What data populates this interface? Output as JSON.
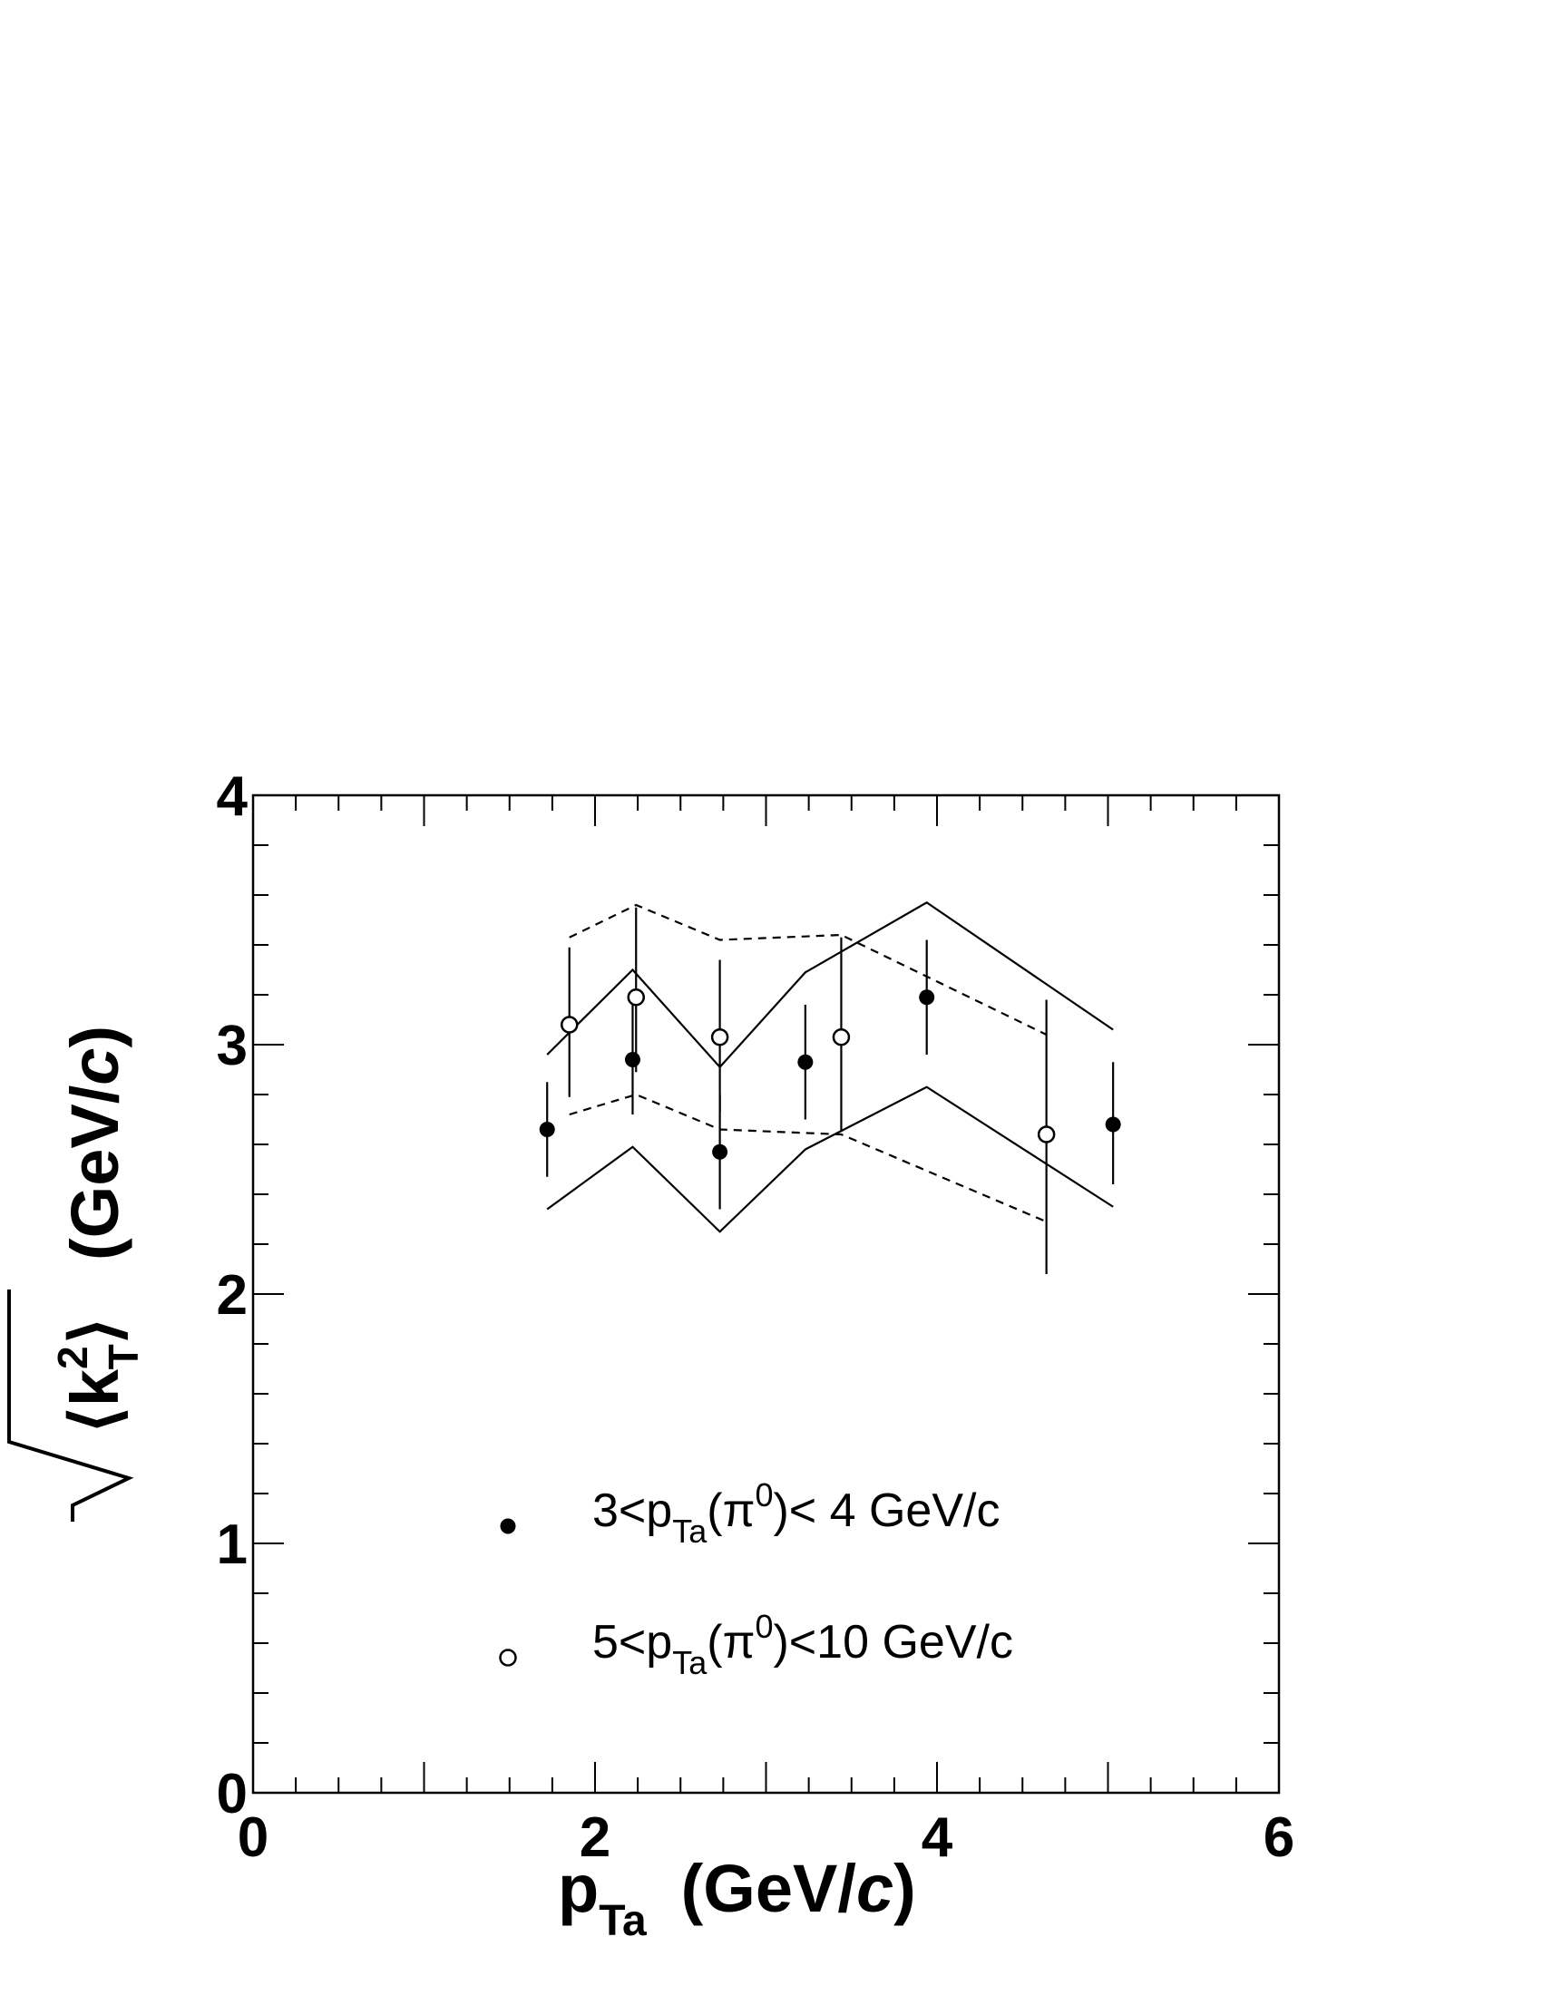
{
  "chart_data": {
    "type": "scatter",
    "xlabel": {
      "main": "p",
      "sub": "Ta",
      "unit_open": "(GeV/",
      "unit_italic": "c",
      "unit_close": ")"
    },
    "ylabel": {
      "root_open": "⟨k",
      "sup": "2",
      "sub": "T",
      "root_close": "⟩",
      "unit_open": "(GeV/",
      "unit_italic": "c",
      "unit_close": ")"
    },
    "xlim": [
      0,
      6
    ],
    "ylim": [
      0,
      4
    ],
    "x_ticks": [
      "0",
      "2",
      "4",
      "6"
    ],
    "y_ticks": [
      "0",
      "1",
      "2",
      "3",
      "4"
    ],
    "grid": false,
    "legend_position": "lower-center",
    "series": [
      {
        "name": "3<pTa(π0)< 4 GeV/c",
        "legend": {
          "a": "3<p",
          "sub": "Ta",
          "b": "(π",
          "sup": "0",
          "c": ")< 4 GeV/c"
        },
        "marker": "filled-circle",
        "x": [
          1.72,
          2.22,
          2.73,
          3.23,
          3.94,
          5.03
        ],
        "y": [
          2.66,
          2.94,
          2.57,
          2.93,
          3.19,
          2.68
        ],
        "err_low": [
          0.19,
          0.22,
          0.23,
          0.23,
          0.23,
          0.24
        ],
        "err_high": [
          0.19,
          0.22,
          0.23,
          0.23,
          0.23,
          0.25
        ],
        "sys_upper": {
          "x": [
            1.72,
            2.22,
            2.73,
            3.23,
            3.94,
            5.03
          ],
          "y": [
            2.96,
            3.3,
            2.91,
            3.29,
            3.57,
            3.06
          ]
        },
        "sys_lower": {
          "x": [
            1.72,
            2.22,
            2.73,
            3.23,
            3.94,
            5.03
          ],
          "y": [
            2.34,
            2.59,
            2.25,
            2.58,
            2.83,
            2.35
          ]
        }
      },
      {
        "name": "5<pTa(π0)<10 GeV/c",
        "legend": {
          "a": "5<p",
          "sub": "Ta",
          "b": "(π",
          "sup": "0",
          "c": ")<10 GeV/c"
        },
        "marker": "open-circle",
        "x": [
          1.85,
          2.24,
          2.73,
          3.44,
          4.64
        ],
        "y": [
          3.08,
          3.19,
          3.03,
          3.03,
          2.64
        ],
        "err_low": [
          0.29,
          0.3,
          0.3,
          0.38,
          0.56
        ],
        "err_high": [
          0.31,
          0.36,
          0.31,
          0.4,
          0.54
        ],
        "sys_upper": {
          "x": [
            1.85,
            2.24,
            2.73,
            3.44,
            4.64
          ],
          "y": [
            3.43,
            3.56,
            3.42,
            3.44,
            3.04
          ]
        },
        "sys_lower": {
          "x": [
            1.85,
            2.24,
            2.73,
            3.44,
            4.64
          ],
          "y": [
            2.72,
            2.8,
            2.66,
            2.64,
            2.29
          ]
        }
      }
    ]
  }
}
